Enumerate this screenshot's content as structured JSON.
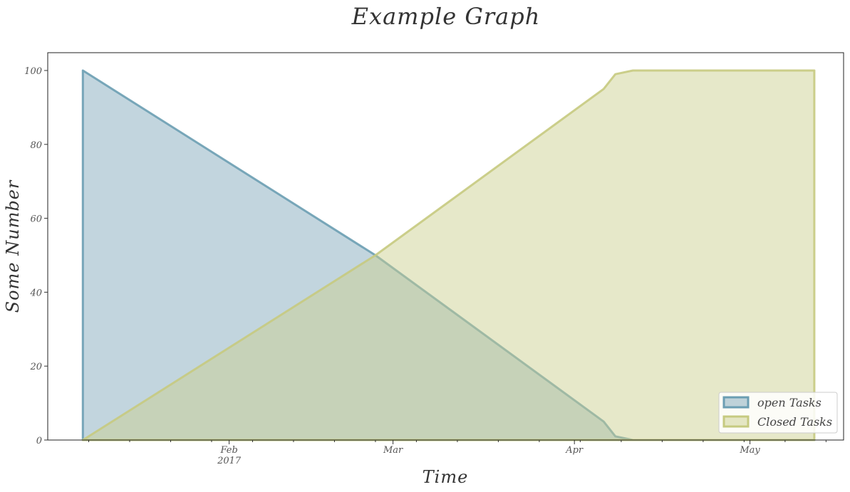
{
  "chart_data": {
    "type": "area",
    "title": "Example Graph",
    "xlabel": "Time",
    "ylabel": "Some Number",
    "ylim": [
      0,
      100
    ],
    "xlim": [
      "2017-01-01",
      "2017-05-17"
    ],
    "yticks": [
      {
        "value": 0,
        "label": "0"
      },
      {
        "value": 20,
        "label": "20"
      },
      {
        "value": 40,
        "label": "40"
      },
      {
        "value": 60,
        "label": "60"
      },
      {
        "value": 80,
        "label": "80"
      },
      {
        "value": 100,
        "label": "100"
      }
    ],
    "xticks_major": [
      {
        "date": "2017-02-01",
        "label": "Feb",
        "sublabel": "2017"
      },
      {
        "date": "2017-03-01",
        "label": "Mar",
        "sublabel": ""
      },
      {
        "date": "2017-04-01",
        "label": "Apr",
        "sublabel": ""
      },
      {
        "date": "2017-05-01",
        "label": "May",
        "sublabel": ""
      }
    ],
    "xticks_minor": [
      "2017-01-08",
      "2017-01-15",
      "2017-01-22",
      "2017-01-29",
      "2017-02-05",
      "2017-02-12",
      "2017-02-19",
      "2017-02-26",
      "2017-03-05",
      "2017-03-12",
      "2017-03-19",
      "2017-03-26",
      "2017-04-02",
      "2017-04-09",
      "2017-04-16",
      "2017-04-23",
      "2017-04-30",
      "2017-05-07",
      "2017-05-14"
    ],
    "grid": false,
    "legend_position": "bottom-right",
    "series": [
      {
        "name": "open Tasks",
        "color": "#7fa8bb",
        "line_color": "#6b9eb3",
        "points": [
          {
            "x": "2017-01-07",
            "y": 100
          },
          {
            "x": "2017-02-26",
            "y": 50
          },
          {
            "x": "2017-04-06",
            "y": 5
          },
          {
            "x": "2017-04-08",
            "y": 1
          },
          {
            "x": "2017-04-11",
            "y": 0
          },
          {
            "x": "2017-05-12",
            "y": 0
          }
        ]
      },
      {
        "name": "Closed Tasks",
        "color": "#cbcf8f",
        "line_color": "#c6ca80",
        "points": [
          {
            "x": "2017-01-07",
            "y": 0
          },
          {
            "x": "2017-02-26",
            "y": 50
          },
          {
            "x": "2017-04-06",
            "y": 95
          },
          {
            "x": "2017-04-08",
            "y": 99
          },
          {
            "x": "2017-04-11",
            "y": 100
          },
          {
            "x": "2017-05-12",
            "y": 100
          }
        ]
      }
    ]
  }
}
